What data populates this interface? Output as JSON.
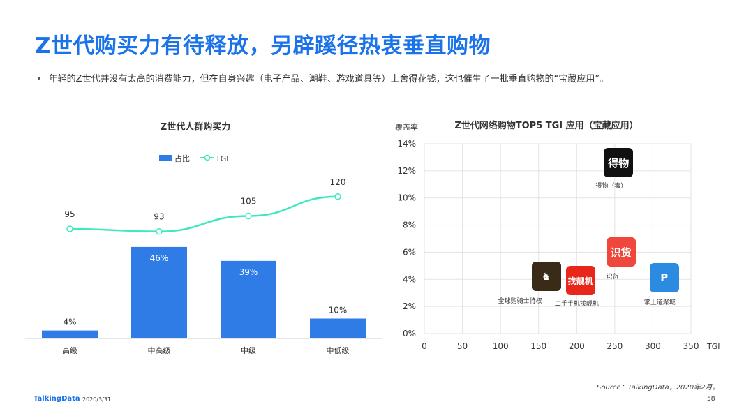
{
  "title": "Z世代购买力有待释放，另辟蹊径热衷垂直购物",
  "bullet": "年轻的Z世代并没有太高的消费能力，但在自身兴趣（电子产品、潮鞋、游戏道具等）上舍得花钱，这也催生了一批垂直购物的“宝藏应用”。",
  "colors": {
    "brand": "#1a73e8",
    "bar": "#2f7ce6",
    "tgi_line": "#3ee8c0"
  },
  "chart_data": [
    {
      "type": "bar",
      "title": "Z世代人群购买力",
      "categories": [
        "高级",
        "中高级",
        "中级",
        "中低级"
      ],
      "series": [
        {
          "name": "占比",
          "type": "bar",
          "values": [
            4,
            46,
            39,
            10
          ],
          "labels": [
            "4%",
            "46%",
            "39%",
            "10%"
          ]
        },
        {
          "name": "TGI",
          "type": "line",
          "values": [
            95,
            93,
            105,
            120
          ],
          "labels": [
            "95",
            "93",
            "105",
            "120"
          ]
        }
      ],
      "legend": "top-center"
    },
    {
      "type": "scatter",
      "title": "Z世代网络购物TOP5 TGI 应用（宝藏应用）",
      "ylabel": "覆盖率",
      "xlabel": "TGI",
      "xlim": [
        0,
        350
      ],
      "ylim": [
        0,
        14
      ],
      "x_ticks": [
        "0",
        "50",
        "100",
        "150",
        "200",
        "250",
        "300",
        "350"
      ],
      "y_ticks": [
        "0%",
        "2%",
        "4%",
        "6%",
        "8%",
        "10%",
        "12%",
        "14%"
      ],
      "grid": true,
      "points": [
        {
          "name": "得物（毒）",
          "x": 255,
          "y": 12.6,
          "icon": "dewu-icon",
          "icon_text": "得物",
          "color": "#111111"
        },
        {
          "name": "识货",
          "x": 258,
          "y": 6.0,
          "icon": "shihuo-icon",
          "icon_text": "识货",
          "color": "#f0473c"
        },
        {
          "name": "掌上道聚城",
          "x": 315,
          "y": 4.1,
          "icon": "daojucheng-icon",
          "icon_text": "P",
          "color": "#2a8be0"
        },
        {
          "name": "全球购骑士特权",
          "x": 160,
          "y": 4.2,
          "icon": "knight-icon",
          "icon_text": "♞",
          "color": "#3a2a18"
        },
        {
          "name": "二手手机找靓机",
          "x": 205,
          "y": 3.9,
          "icon": "zhaoliangji-icon",
          "icon_text": "找靓机",
          "color": "#e8261c"
        }
      ]
    }
  ],
  "source": "Source：TalkingData，2020年2月。",
  "footer": {
    "logo": "TalkingData",
    "date": "2020/3/31",
    "page": "58"
  }
}
